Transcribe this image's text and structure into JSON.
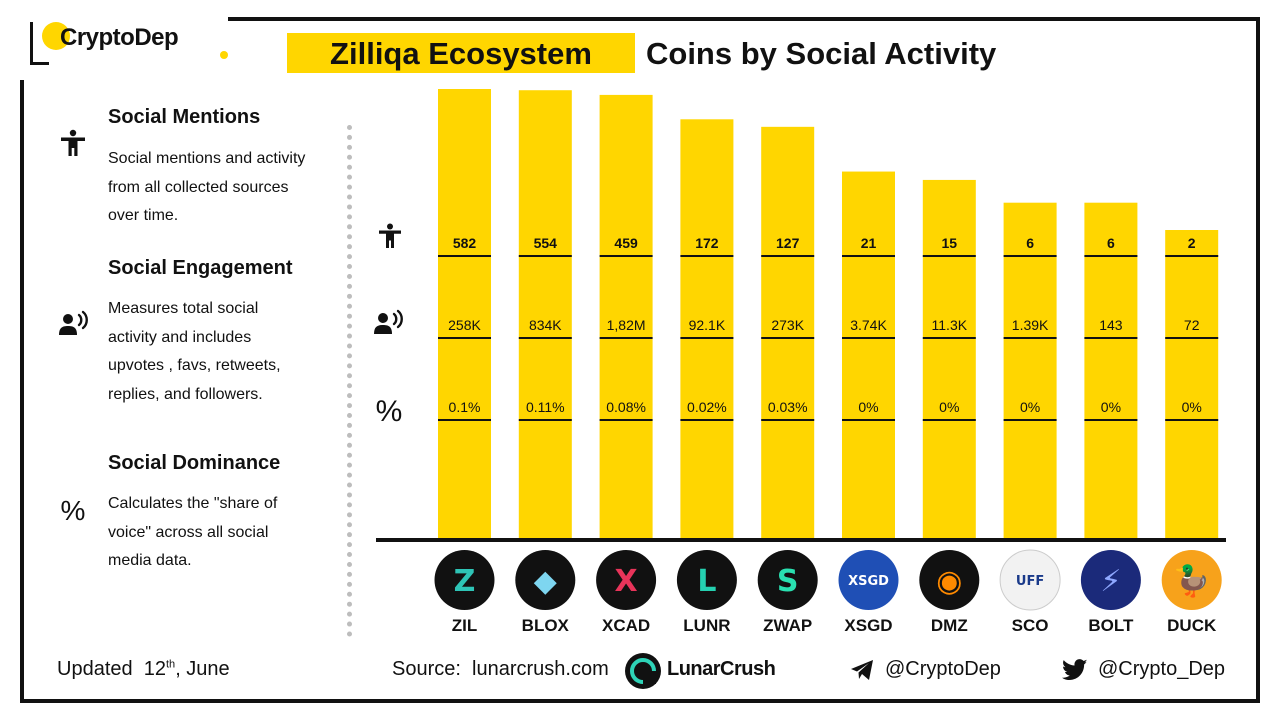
{
  "brand": {
    "name": "CryptoDep"
  },
  "title": {
    "highlight": "Zilliqa Ecosystem",
    "rest": "Coins by Social Activity"
  },
  "legend": [
    {
      "icon": "person-icon",
      "heading": "Social Mentions",
      "lines": [
        "Social mentions and activity",
        "from all collected sources",
        "over time."
      ]
    },
    {
      "icon": "speaking-person-icon",
      "heading": "Social Engagement",
      "lines": [
        "Measures total social",
        "activity and includes",
        "upvotes , favs, retweets,",
        "replies, and followers."
      ]
    },
    {
      "icon": "percent-icon",
      "heading": "Social Dominance",
      "lines": [
        "Calculates the \"share of",
        "voice\" across all social",
        "media data."
      ]
    }
  ],
  "chart_data": {
    "type": "bar",
    "categories": [
      "ZIL",
      "BLOX",
      "XCAD",
      "LUNR",
      "ZWAP",
      "XSGD",
      "DMZ",
      "SCO",
      "BOLT",
      "DUCK"
    ],
    "values": [
      582,
      554,
      459,
      172,
      127,
      21,
      15,
      6,
      6,
      2
    ],
    "rows": [
      {
        "icon": "person-icon",
        "labels": [
          "582",
          "554",
          "459",
          "172",
          "127",
          "21",
          "15",
          "6",
          "6",
          "2"
        ]
      },
      {
        "icon": "speaking-person-icon",
        "labels": [
          "258K",
          "834K",
          "1,82M",
          "92.1K",
          "273K",
          "3.74K",
          "11.3K",
          "1.39K",
          "143",
          "72"
        ]
      },
      {
        "icon": "percent-icon",
        "labels": [
          "0.1%",
          "0.11%",
          "0.08%",
          "0.02%",
          "0.03%",
          "0%",
          "0%",
          "0%",
          "0%",
          "0%"
        ]
      }
    ],
    "coin_logos": [
      {
        "name": "ZIL",
        "bg": "#111111",
        "fg": "#2EC4B6",
        "glyph": "Z"
      },
      {
        "name": "BLOX",
        "bg": "#111111",
        "fg": "#7ED6F0",
        "glyph": "◆"
      },
      {
        "name": "XCAD",
        "bg": "#111111",
        "fg": "#E8345A",
        "glyph": "X"
      },
      {
        "name": "LUNR",
        "bg": "#111111",
        "fg": "#25D0B0",
        "glyph": "L"
      },
      {
        "name": "ZWAP",
        "bg": "#111111",
        "fg": "#29E0B0",
        "glyph": "S"
      },
      {
        "name": "XSGD",
        "bg": "#1F4FB5",
        "fg": "#ffffff",
        "glyph": "XSGD"
      },
      {
        "name": "DMZ",
        "bg": "#111111",
        "fg": "#FF8A00",
        "glyph": "◉"
      },
      {
        "name": "SCO",
        "bg": "#F2F2F2",
        "fg": "#1A3A8A",
        "glyph": "UFF"
      },
      {
        "name": "BOLT",
        "bg": "#1B2A7A",
        "fg": "#8FA8FF",
        "glyph": "⚡"
      },
      {
        "name": "DUCK",
        "bg": "#F7A21B",
        "fg": "#ffffff",
        "glyph": "🦆"
      }
    ],
    "title": "Coins by Social Activity",
    "xlabel": "",
    "ylabel": "",
    "colors": {
      "bar": "#FFD600",
      "axis": "#111111"
    }
  },
  "footer": {
    "updated_label": "Updated",
    "updated_day": "12",
    "updated_suffix": "th",
    "updated_month": ", June",
    "source": "Source:  lunarcrush.com",
    "partner": "LunarCrush",
    "telegram": "@CryptoDep",
    "twitter": "@Crypto_Dep"
  }
}
